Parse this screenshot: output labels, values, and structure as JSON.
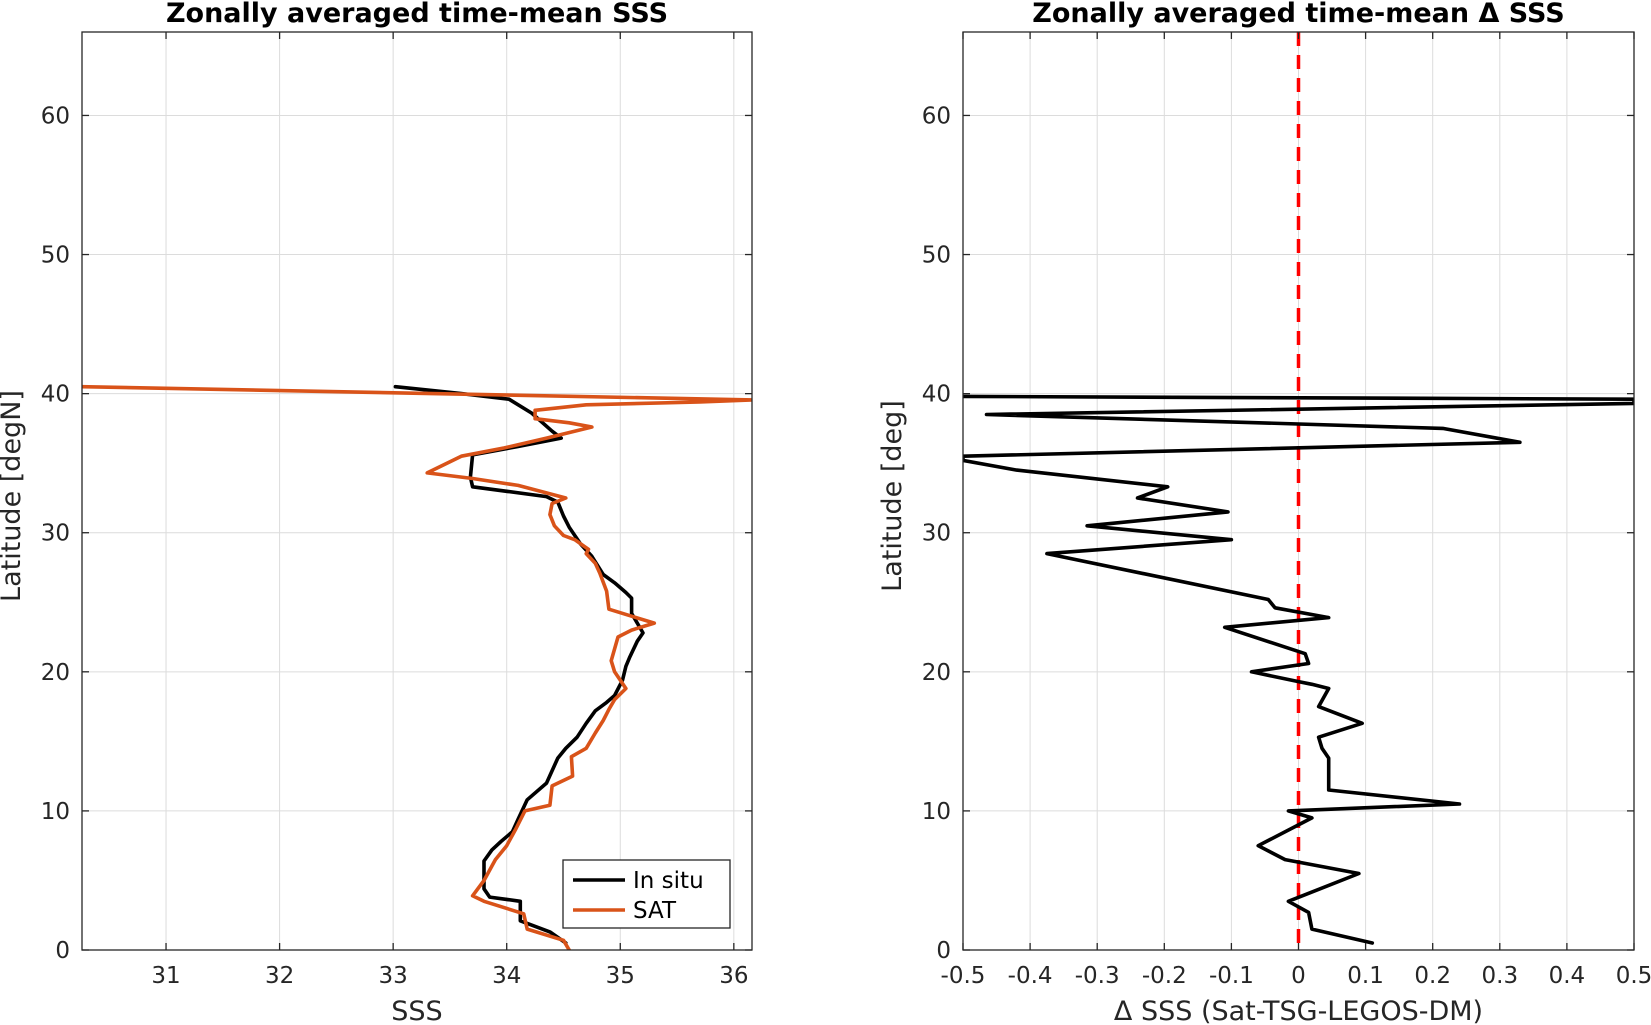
{
  "chart_data": [
    {
      "type": "line",
      "title": "Zonally averaged time-mean SSS",
      "xlabel": "SSS",
      "ylabel": "Latitude [degN]",
      "xlim": [
        30.26,
        36.16
      ],
      "ylim": [
        0,
        66
      ],
      "xticks": [
        31,
        32,
        33,
        34,
        35,
        36
      ],
      "yticks": [
        0,
        10,
        20,
        30,
        40,
        50,
        60
      ],
      "grid": true,
      "legend": "bottom-right",
      "series": [
        {
          "name": "In situ",
          "color": "#000000",
          "points": [
            [
              34.52,
              0.5
            ],
            [
              34.38,
              1.3
            ],
            [
              34.12,
              2.1
            ],
            [
              34.12,
              3.5
            ],
            [
              33.85,
              3.8
            ],
            [
              33.8,
              4.4
            ],
            [
              33.8,
              6.4
            ],
            [
              33.87,
              7.2
            ],
            [
              33.95,
              7.8
            ],
            [
              34.05,
              8.5
            ],
            [
              34.1,
              9.4
            ],
            [
              34.18,
              10.8
            ],
            [
              34.35,
              12.0
            ],
            [
              34.45,
              13.8
            ],
            [
              34.52,
              14.5
            ],
            [
              34.62,
              15.3
            ],
            [
              34.7,
              16.3
            ],
            [
              34.78,
              17.2
            ],
            [
              34.88,
              17.8
            ],
            [
              34.95,
              18.3
            ],
            [
              35.02,
              19.4
            ],
            [
              35.05,
              20.4
            ],
            [
              35.08,
              21.0
            ],
            [
              35.15,
              22.2
            ],
            [
              35.2,
              22.8
            ],
            [
              35.1,
              24.2
            ],
            [
              35.1,
              25.3
            ],
            [
              35.05,
              25.7
            ],
            [
              34.95,
              26.4
            ],
            [
              34.85,
              27.0
            ],
            [
              34.75,
              28.3
            ],
            [
              34.65,
              29.2
            ],
            [
              34.6,
              29.8
            ],
            [
              34.55,
              30.4
            ],
            [
              34.5,
              31.2
            ],
            [
              34.45,
              32.2
            ],
            [
              34.35,
              32.6
            ],
            [
              33.7,
              33.3
            ],
            [
              33.68,
              34.0
            ],
            [
              33.7,
              35.6
            ],
            [
              34.1,
              36.2
            ],
            [
              34.48,
              36.8
            ],
            [
              34.4,
              37.3
            ],
            [
              34.22,
              38.6
            ],
            [
              34.02,
              39.6
            ],
            [
              33.6,
              40.0
            ],
            [
              33.02,
              40.5
            ]
          ]
        },
        {
          "name": "SAT",
          "color": "#D95319",
          "points": [
            [
              34.55,
              0.0
            ],
            [
              34.5,
              0.7
            ],
            [
              34.18,
              1.5
            ],
            [
              34.15,
              2.6
            ],
            [
              33.8,
              3.5
            ],
            [
              33.7,
              3.9
            ],
            [
              33.8,
              5.0
            ],
            [
              33.9,
              6.5
            ],
            [
              34.0,
              7.5
            ],
            [
              34.08,
              8.7
            ],
            [
              34.16,
              10.0
            ],
            [
              34.38,
              10.4
            ],
            [
              34.4,
              11.8
            ],
            [
              34.58,
              12.5
            ],
            [
              34.57,
              13.9
            ],
            [
              34.7,
              14.5
            ],
            [
              34.78,
              15.6
            ],
            [
              34.85,
              16.5
            ],
            [
              34.9,
              17.3
            ],
            [
              34.95,
              18.0
            ],
            [
              35.05,
              18.8
            ],
            [
              34.95,
              20.0
            ],
            [
              34.92,
              20.8
            ],
            [
              34.98,
              22.5
            ],
            [
              35.1,
              23.0
            ],
            [
              35.3,
              23.5
            ],
            [
              35.1,
              24.0
            ],
            [
              34.9,
              24.5
            ],
            [
              34.88,
              25.8
            ],
            [
              34.82,
              27.1
            ],
            [
              34.78,
              27.8
            ],
            [
              34.7,
              28.5
            ],
            [
              34.72,
              28.8
            ],
            [
              34.6,
              29.5
            ],
            [
              34.5,
              29.8
            ],
            [
              34.42,
              30.5
            ],
            [
              34.38,
              31.3
            ],
            [
              34.4,
              32.1
            ],
            [
              34.52,
              32.5
            ],
            [
              34.1,
              33.4
            ],
            [
              33.7,
              33.9
            ],
            [
              33.3,
              34.3
            ],
            [
              33.6,
              35.5
            ],
            [
              33.98,
              36.1
            ],
            [
              34.35,
              36.8
            ],
            [
              34.75,
              37.6
            ],
            [
              34.55,
              37.9
            ],
            [
              34.25,
              38.2
            ],
            [
              34.25,
              38.8
            ],
            [
              34.7,
              39.2
            ],
            [
              35.7,
              39.4
            ],
            [
              36.16,
              39.55
            ],
            [
              30.26,
              40.5
            ]
          ]
        }
      ]
    },
    {
      "type": "line",
      "title": "Zonally averaged time-mean Δ SSS",
      "xlabel": "Δ SSS (Sat-TSG-LEGOS-DM)",
      "ylabel": "Latitude [deg]",
      "xlim": [
        -0.5,
        0.5
      ],
      "ylim": [
        0,
        66
      ],
      "xticks": [
        -0.5,
        -0.4,
        -0.3,
        -0.2,
        -0.1,
        0,
        0.1,
        0.2,
        0.3,
        0.4,
        0.5
      ],
      "xticklabels": [
        "-0.5",
        "-0.4",
        "-0.3",
        "-0.2",
        "-0.1",
        "0",
        "0.1",
        "0.2",
        "0.3",
        "0.4",
        "0.5"
      ],
      "yticks": [
        0,
        10,
        20,
        30,
        40,
        50,
        60
      ],
      "grid": true,
      "reference_line": {
        "x": 0,
        "color": "#FF0000",
        "style": "dashed"
      },
      "series": [
        {
          "color": "#000000",
          "points": [
            [
              0.11,
              0.5
            ],
            [
              0.02,
              1.5
            ],
            [
              0.015,
              2.7
            ],
            [
              -0.015,
              3.5
            ],
            [
              0.09,
              5.5
            ],
            [
              -0.02,
              6.5
            ],
            [
              -0.06,
              7.5
            ],
            [
              0.02,
              9.5
            ],
            [
              -0.015,
              10.0
            ],
            [
              0.24,
              10.5
            ],
            [
              0.045,
              11.5
            ],
            [
              0.045,
              13.8
            ],
            [
              0.035,
              14.5
            ],
            [
              0.03,
              15.3
            ],
            [
              0.095,
              16.3
            ],
            [
              0.03,
              17.5
            ],
            [
              0.045,
              18.8
            ],
            [
              0.02,
              19.1
            ],
            [
              0.0,
              19.3
            ],
            [
              -0.07,
              20.0
            ],
            [
              0.015,
              20.6
            ],
            [
              0.01,
              21.3
            ],
            [
              -0.11,
              23.2
            ],
            [
              0.045,
              23.9
            ],
            [
              -0.035,
              24.6
            ],
            [
              -0.045,
              25.2
            ],
            [
              -0.375,
              28.5
            ],
            [
              -0.1,
              29.5
            ],
            [
              -0.315,
              30.5
            ],
            [
              -0.105,
              31.5
            ],
            [
              -0.24,
              32.5
            ],
            [
              -0.195,
              33.3
            ],
            [
              -0.42,
              34.5
            ],
            [
              -0.5,
              35.2
            ],
            [
              -0.5,
              35.5
            ],
            [
              0.33,
              36.5
            ],
            [
              0.215,
              37.5
            ],
            [
              -0.465,
              38.5
            ],
            [
              0.5,
              39.3
            ],
            [
              0.5,
              39.6
            ],
            [
              -0.5,
              39.8
            ]
          ]
        }
      ]
    }
  ]
}
